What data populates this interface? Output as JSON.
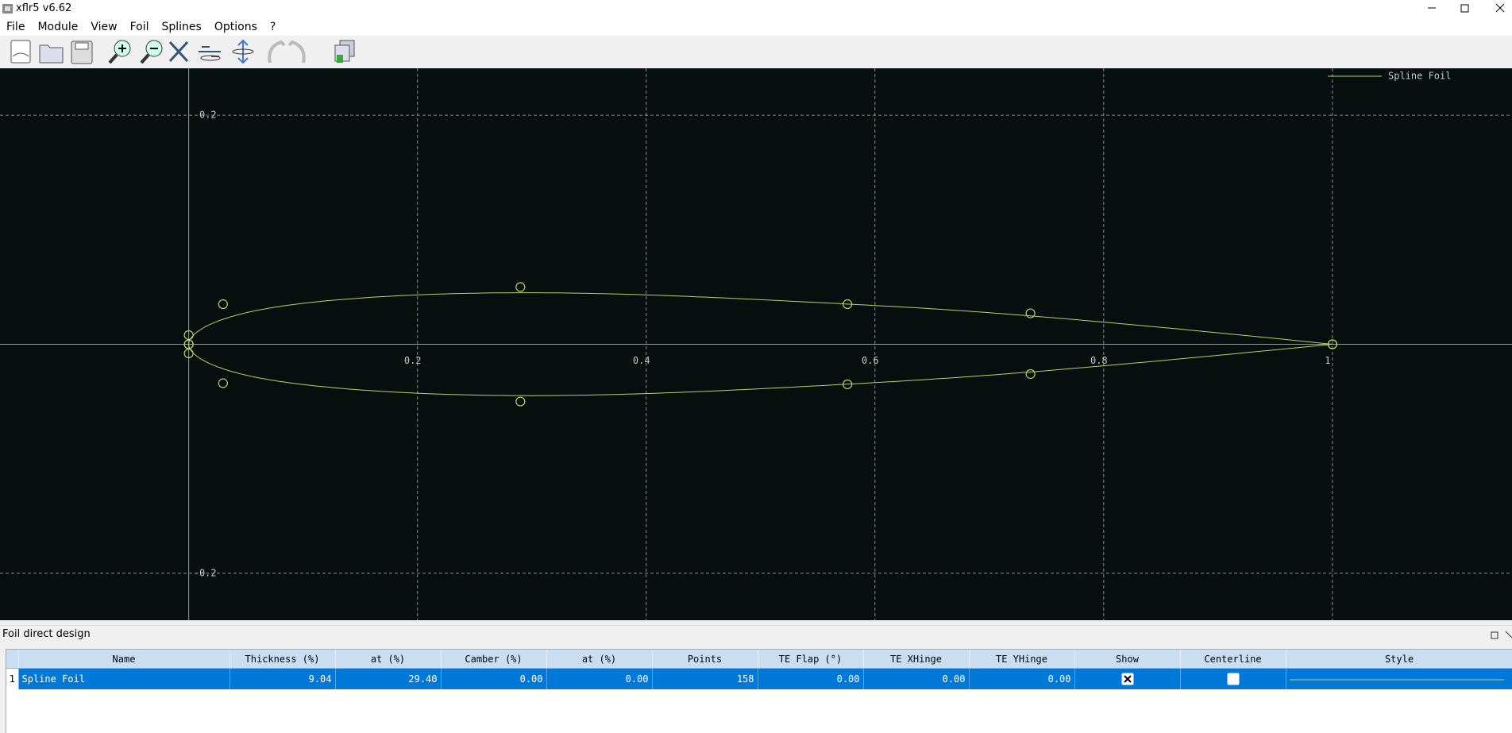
{
  "window": {
    "title": "xflr5 v6.62"
  },
  "menu": [
    "File",
    "Module",
    "View",
    "Foil",
    "Splines",
    "Options",
    "?"
  ],
  "plot": {
    "xlim": [
      -0.165,
      1.157
    ],
    "ylim": [
      -0.241,
      0.241
    ],
    "xticks": [
      0.2,
      0.4,
      0.6,
      0.8,
      1
    ],
    "yticks": [
      0.2,
      -0.2
    ],
    "grid": true,
    "legend": "Spline Foil",
    "color": "#b5d36a",
    "upper": {
      "x": [
        0,
        0,
        0.03,
        0.29,
        0.576,
        0.736,
        1
      ],
      "y": [
        0,
        0.008,
        0.035,
        0.05,
        0.035,
        0.027,
        0
      ]
    },
    "lower": {
      "x": [
        0,
        0,
        0.03,
        0.29,
        0.576,
        0.736,
        1
      ],
      "y": [
        0,
        -0.008,
        -0.034,
        -0.05,
        -0.035,
        -0.026,
        0
      ]
    }
  },
  "panel": {
    "title": "Foil direct design",
    "table": {
      "columns": [
        "Name",
        "Thickness (%)",
        "at (%)",
        "Camber (%)",
        "at (%)",
        "Points",
        "TE Flap (°)",
        "TE XHinge",
        "TE YHinge",
        "Show",
        "Centerline",
        "Style"
      ],
      "rows": [
        {
          "index": "1",
          "cells": [
            "Spline Foil",
            "9.04",
            "29.40",
            "0.00",
            "0.00",
            "158",
            "0.00",
            "0.00",
            "0.00"
          ],
          "show": true,
          "centerline": false
        }
      ]
    }
  }
}
